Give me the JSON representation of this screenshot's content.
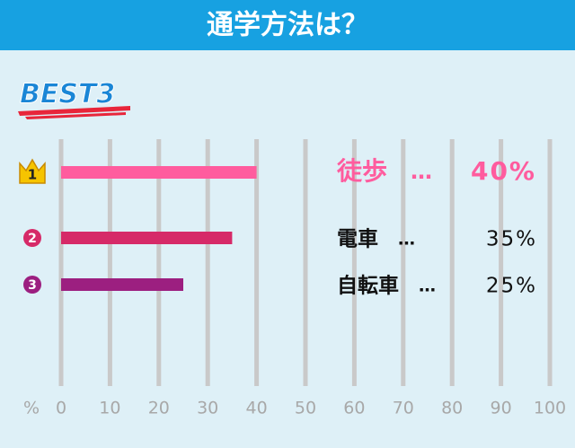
{
  "chart_data": {
    "type": "bar",
    "orientation": "horizontal",
    "title": "通学方法は？",
    "subtitle": "BEST3",
    "categories": [
      "徒歩",
      "電車",
      "自転車"
    ],
    "values": [
      40,
      35,
      25
    ],
    "value_labels": [
      "40%",
      "35%",
      "25%"
    ],
    "colors": [
      "#ff5c9e",
      "#d62a68",
      "#9c1f80"
    ],
    "ranks": [
      1,
      2,
      3
    ],
    "separator": "…",
    "xlabel": "%",
    "xlim": [
      0,
      100
    ],
    "xticks": [
      0,
      10,
      20,
      30,
      40,
      50,
      60,
      70,
      80,
      90,
      100
    ],
    "grid": true
  }
}
